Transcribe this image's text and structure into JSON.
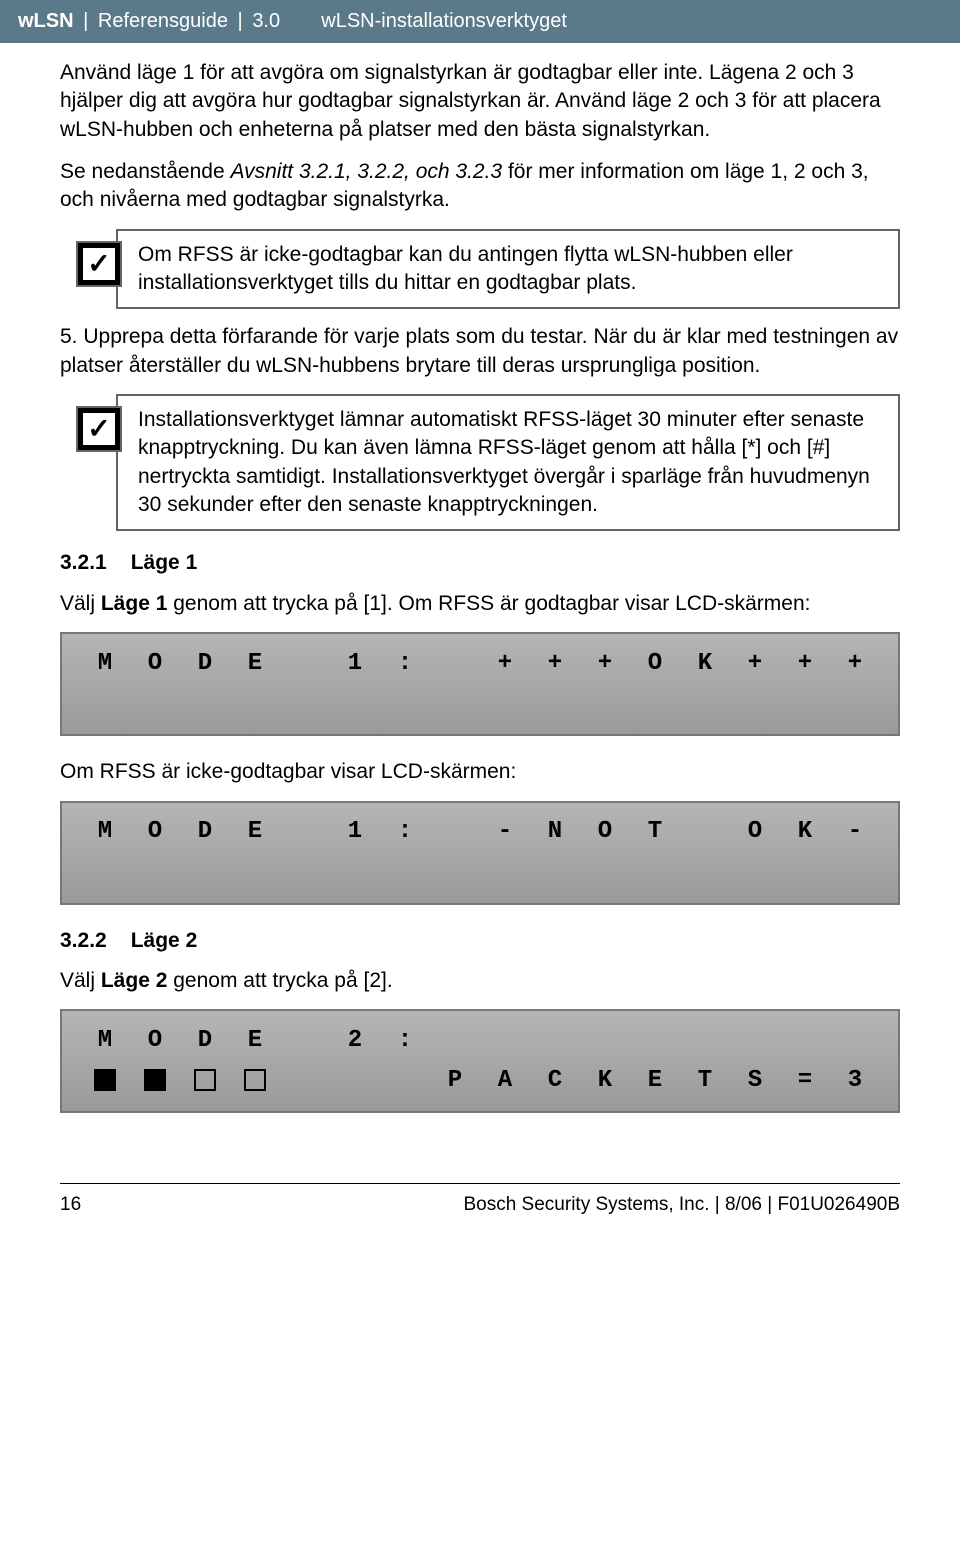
{
  "header": {
    "product": "wLSN",
    "doc": "Referensguide",
    "version": "3.0",
    "section": "wLSN-installationsverktyget"
  },
  "body": {
    "p1": "Använd läge 1 för att avgöra om signalstyrkan är godtagbar eller inte. Lägena 2 och 3 hjälper dig att avgöra hur godtagbar signalstyrkan är. Använd läge 2 och 3 för att placera wLSN-hubben och enheterna på platser med den bästa signalstyrkan.",
    "p2a": "Se nedanstående ",
    "p2b": "Avsnitt 3.2.1, 3.2.2, och 3.2.3",
    "p2c": " för mer information om läge 1, 2 och 3, och nivåerna med godtagbar signalstyrka.",
    "note1": "Om RFSS är icke-godtagbar kan du antingen flytta wLSN-hubben eller installationsverktyget tills du hittar en godtagbar plats.",
    "p3": "5. Upprepa detta förfarande för varje plats som du testar. När du är klar med testningen av platser återställer du wLSN-hubbens brytare till deras ursprungliga position.",
    "note2": "Installationsverktyget lämnar automatiskt RFSS-läget 30 minuter efter senaste knapptryckning. Du kan även lämna RFSS-läget genom att hålla [*] och [#] nertryckta samtidigt. Installationsverktyget övergår i sparläge från huvudmenyn 30 sekunder efter den senaste knapptryckningen.",
    "s321num": "3.2.1",
    "s321title": "Läge 1",
    "s321p_a": "Välj ",
    "s321p_b": "Läge 1",
    "s321p_c": " genom att trycka på [1]. Om RFSS är godtagbar visar LCD-skärmen:",
    "lcd1": [
      "M",
      "O",
      "D",
      "E",
      "",
      "1",
      ":",
      "",
      "+",
      "+",
      "+",
      "O",
      "K",
      "+",
      "+",
      "+"
    ],
    "s321p2": "Om RFSS är icke-godtagbar visar LCD-skärmen:",
    "lcd2": [
      "M",
      "O",
      "D",
      "E",
      "",
      "1",
      ":",
      "",
      "-",
      "N",
      "O",
      "T",
      "",
      "O",
      "K",
      "-"
    ],
    "s322num": "3.2.2",
    "s322title": "Läge 2",
    "s322p_a": "Välj ",
    "s322p_b": "Läge 2",
    "s322p_c": " genom att trycka på [2].",
    "lcd3_r1": [
      "M",
      "O",
      "D",
      "E",
      "",
      "2",
      ":",
      "",
      "",
      "",
      "",
      "",
      "",
      "",
      "",
      ""
    ],
    "lcd3_r2_blocks": [
      "F",
      "F",
      "E",
      "E"
    ],
    "lcd3_r2_text": [
      "",
      "",
      "",
      "",
      "",
      "",
      "",
      "P",
      "A",
      "C",
      "K",
      "E",
      "T",
      "S",
      "=",
      "3"
    ]
  },
  "footer": {
    "page": "16",
    "right": "Bosch Security Systems, Inc. | 8/06 | F01U026490B"
  },
  "colors": {
    "header_bg": "#5a7a8a",
    "lcd_bg": "#a8a8a8"
  }
}
